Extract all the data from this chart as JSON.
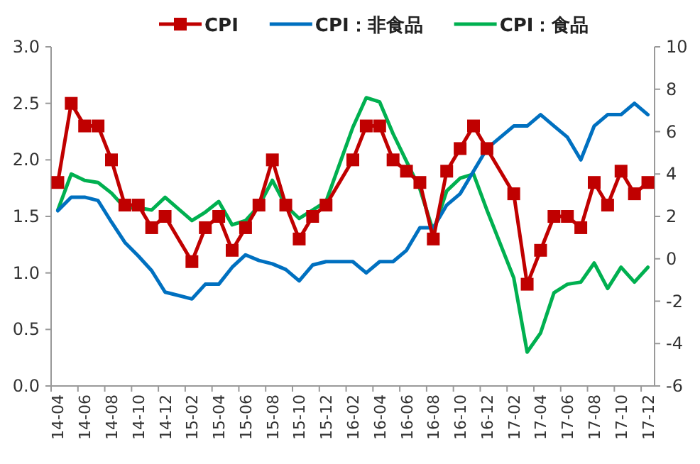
{
  "chart_data": {
    "type": "line",
    "categories": [
      "14-04",
      null,
      "14-06",
      null,
      "14-08",
      null,
      "14-10",
      null,
      "14-12",
      null,
      "15-02",
      null,
      "15-04",
      null,
      "15-06",
      null,
      "15-08",
      null,
      "15-10",
      null,
      "15-12",
      null,
      "16-02",
      null,
      "16-04",
      null,
      "16-06",
      null,
      "16-08",
      null,
      "16-10",
      null,
      "16-12",
      null,
      "17-02",
      null,
      "17-04",
      null,
      "17-06",
      null,
      "17-08",
      null,
      "17-10",
      null,
      "17-12"
    ],
    "series": [
      {
        "name": "CPI",
        "color": "#c00000",
        "marker": "square",
        "values": [
          1.8,
          2.5,
          2.3,
          2.3,
          2.0,
          1.6,
          1.6,
          1.4,
          1.5,
          null,
          1.1,
          1.4,
          1.5,
          1.2,
          1.4,
          1.6,
          2.0,
          1.6,
          1.3,
          1.5,
          1.6,
          null,
          2.0,
          2.3,
          2.3,
          2.0,
          1.9,
          1.8,
          1.3,
          1.9,
          2.1,
          2.3,
          2.1,
          null,
          1.7,
          0.9,
          1.2,
          1.5,
          1.5,
          1.4,
          1.8,
          1.6,
          1.9,
          1.7,
          1.8
        ]
      },
      {
        "name": "CPI：非食品",
        "color": "#0070c0",
        "marker": "none",
        "values": [
          1.55,
          1.67,
          1.67,
          1.64,
          1.45,
          1.27,
          1.15,
          1.02,
          0.83,
          null,
          0.77,
          0.9,
          0.9,
          1.05,
          1.16,
          1.11,
          1.08,
          1.03,
          0.93,
          1.07,
          1.1,
          null,
          1.1,
          1.0,
          1.1,
          1.1,
          1.2,
          1.4,
          1.4,
          1.6,
          1.7,
          1.9,
          2.1,
          null,
          2.3,
          2.3,
          2.4,
          2.3,
          2.2,
          2.0,
          2.3,
          2.4,
          2.4,
          2.5,
          2.4
        ]
      },
      {
        "name": "CPI：食品",
        "color": "#00b050",
        "marker": "none",
        "axis": "y2",
        "values": [
          2.3,
          4.0,
          3.7,
          3.6,
          3.1,
          2.4,
          2.4,
          2.3,
          2.9,
          null,
          1.8,
          2.2,
          2.7,
          1.6,
          1.8,
          2.5,
          3.7,
          2.5,
          1.9,
          2.3,
          2.7,
          null,
          6.2,
          7.6,
          7.4,
          5.9,
          4.6,
          3.3,
          1.3,
          3.2,
          3.8,
          4.0,
          2.3,
          null,
          -0.9,
          -4.4,
          -3.5,
          -1.6,
          -1.2,
          -1.1,
          -0.2,
          -1.4,
          -0.4,
          -1.1,
          -0.4
        ]
      }
    ],
    "ylim": [
      0,
      3
    ],
    "yticks": [
      {
        "value": 0,
        "label": "0.0"
      },
      {
        "value": 0.5,
        "label": "0.5"
      },
      {
        "value": 1,
        "label": "1.0"
      },
      {
        "value": 1.5,
        "label": "1.5"
      },
      {
        "value": 2,
        "label": "2.0"
      },
      {
        "value": 2.5,
        "label": "2.5"
      },
      {
        "value": 3,
        "label": "3.0"
      }
    ],
    "y2lim": [
      -6,
      10
    ],
    "y2ticks": [
      -6,
      -4,
      -2,
      0,
      2,
      4,
      6,
      8,
      10
    ],
    "legend": "top",
    "grid": false,
    "line_style": "solid"
  }
}
